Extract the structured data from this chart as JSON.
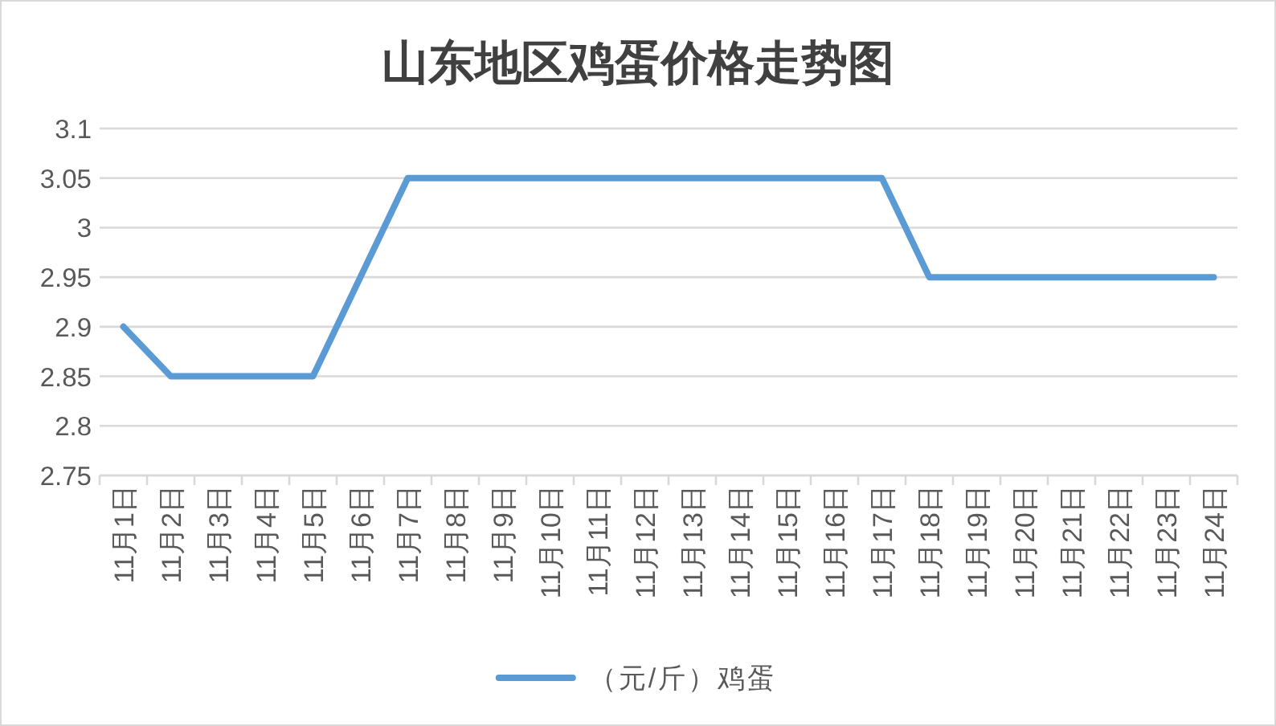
{
  "chart_data": {
    "type": "line",
    "title": "山东地区鸡蛋价格走势图",
    "categories": [
      "11月1日",
      "11月2日",
      "11月3日",
      "11月4日",
      "11月5日",
      "11月6日",
      "11月7日",
      "11月8日",
      "11月9日",
      "11月10日",
      "11月11日",
      "11月12日",
      "11月13日",
      "11月14日",
      "11月15日",
      "11月16日",
      "11月17日",
      "11月18日",
      "11月19日",
      "11月20日",
      "11月21日",
      "11月22日",
      "11月23日",
      "11月24日"
    ],
    "series": [
      {
        "name": "（元/斤）鸡蛋",
        "color": "#5b9bd5",
        "values": [
          2.9,
          2.85,
          2.85,
          2.85,
          2.85,
          2.95,
          3.05,
          3.05,
          3.05,
          3.05,
          3.05,
          3.05,
          3.05,
          3.05,
          3.05,
          3.05,
          3.05,
          2.95,
          2.95,
          2.95,
          2.95,
          2.95,
          2.95,
          2.95
        ]
      }
    ],
    "ylim": [
      2.75,
      3.1
    ],
    "yticks": [
      2.75,
      2.8,
      2.85,
      2.9,
      2.95,
      3,
      3.05,
      3.1
    ],
    "grid": "y",
    "legend": "bottom"
  }
}
